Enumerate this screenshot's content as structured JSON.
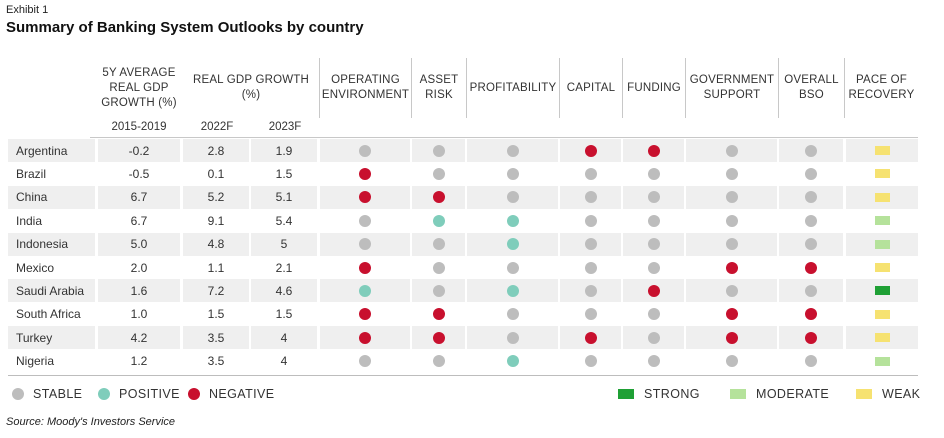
{
  "exhibit_label": "Exhibit 1",
  "chart_data": {
    "type": "table",
    "title": "Summary of Banking System Outlooks by country",
    "columns": [
      {
        "key": "avg",
        "label": "5Y AVERAGE REAL GDP GROWTH (%)",
        "sublabel": "2015-2019"
      },
      {
        "key": "gdp22",
        "label": "REAL GDP GROWTH (%)",
        "sublabel": "2022F"
      },
      {
        "key": "gdp23",
        "label": "",
        "sublabel": "2023F"
      },
      {
        "key": "operating",
        "label": "OPERATING ENVIRONMENT"
      },
      {
        "key": "asset",
        "label": "ASSET RISK"
      },
      {
        "key": "profit",
        "label": "PROFITABILITY"
      },
      {
        "key": "capital",
        "label": "CAPITAL"
      },
      {
        "key": "funding",
        "label": "FUNDING"
      },
      {
        "key": "gov",
        "label": "GOVERNMENT SUPPORT"
      },
      {
        "key": "overall",
        "label": "OVERALL BSO"
      },
      {
        "key": "pace",
        "label": "PACE OF RECOVERY"
      }
    ],
    "rows": [
      {
        "country": "Argentina",
        "avg": "-0.2",
        "gdp22": "2.8",
        "gdp23": "1.9",
        "operating": "stable",
        "asset": "stable",
        "profit": "stable",
        "capital": "negative",
        "funding": "negative",
        "gov": "stable",
        "overall": "stable",
        "pace": "weak"
      },
      {
        "country": "Brazil",
        "avg": "-0.5",
        "gdp22": "0.1",
        "gdp23": "1.5",
        "operating": "negative",
        "asset": "stable",
        "profit": "stable",
        "capital": "stable",
        "funding": "stable",
        "gov": "stable",
        "overall": "stable",
        "pace": "weak"
      },
      {
        "country": "China",
        "avg": "6.7",
        "gdp22": "5.2",
        "gdp23": "5.1",
        "operating": "negative",
        "asset": "negative",
        "profit": "stable",
        "capital": "stable",
        "funding": "stable",
        "gov": "stable",
        "overall": "stable",
        "pace": "weak"
      },
      {
        "country": "India",
        "avg": "6.7",
        "gdp22": "9.1",
        "gdp23": "5.4",
        "operating": "stable",
        "asset": "positive",
        "profit": "positive",
        "capital": "stable",
        "funding": "stable",
        "gov": "stable",
        "overall": "stable",
        "pace": "moderate"
      },
      {
        "country": "Indonesia",
        "avg": "5.0",
        "gdp22": "4.8",
        "gdp23": "5",
        "operating": "stable",
        "asset": "stable",
        "profit": "positive",
        "capital": "stable",
        "funding": "stable",
        "gov": "stable",
        "overall": "stable",
        "pace": "moderate"
      },
      {
        "country": "Mexico",
        "avg": "2.0",
        "gdp22": "1.1",
        "gdp23": "2.1",
        "operating": "negative",
        "asset": "stable",
        "profit": "stable",
        "capital": "stable",
        "funding": "stable",
        "gov": "negative",
        "overall": "negative",
        "pace": "weak"
      },
      {
        "country": "Saudi Arabia",
        "avg": "1.6",
        "gdp22": "7.2",
        "gdp23": "4.6",
        "operating": "positive",
        "asset": "stable",
        "profit": "positive",
        "capital": "stable",
        "funding": "negative",
        "gov": "stable",
        "overall": "stable",
        "pace": "strong"
      },
      {
        "country": "South Africa",
        "avg": "1.0",
        "gdp22": "1.5",
        "gdp23": "1.5",
        "operating": "negative",
        "asset": "negative",
        "profit": "stable",
        "capital": "stable",
        "funding": "stable",
        "gov": "negative",
        "overall": "negative",
        "pace": "weak"
      },
      {
        "country": "Turkey",
        "avg": "4.2",
        "gdp22": "3.5",
        "gdp23": "4",
        "operating": "negative",
        "asset": "negative",
        "profit": "stable",
        "capital": "negative",
        "funding": "stable",
        "gov": "negative",
        "overall": "negative",
        "pace": "weak"
      },
      {
        "country": "Nigeria",
        "avg": "1.2",
        "gdp22": "3.5",
        "gdp23": "4",
        "operating": "stable",
        "asset": "stable",
        "profit": "positive",
        "capital": "stable",
        "funding": "stable",
        "gov": "stable",
        "overall": "stable",
        "pace": "moderate"
      }
    ],
    "legend": {
      "dots": [
        {
          "key": "stable",
          "label": "STABLE"
        },
        {
          "key": "positive",
          "label": "POSITIVE"
        },
        {
          "key": "negative",
          "label": "NEGATIVE"
        }
      ],
      "bars": [
        {
          "key": "strong",
          "label": "STRONG"
        },
        {
          "key": "moderate",
          "label": "MODERATE"
        },
        {
          "key": "weak",
          "label": "WEAK"
        }
      ]
    },
    "colors": {
      "stable": "#bdbdbd",
      "positive": "#7fcdbb",
      "negative": "#c8102e",
      "strong": "#1fa035",
      "moderate": "#b5e29b",
      "weak": "#f6e271"
    }
  },
  "source": "Source: Moody's Investors Service"
}
